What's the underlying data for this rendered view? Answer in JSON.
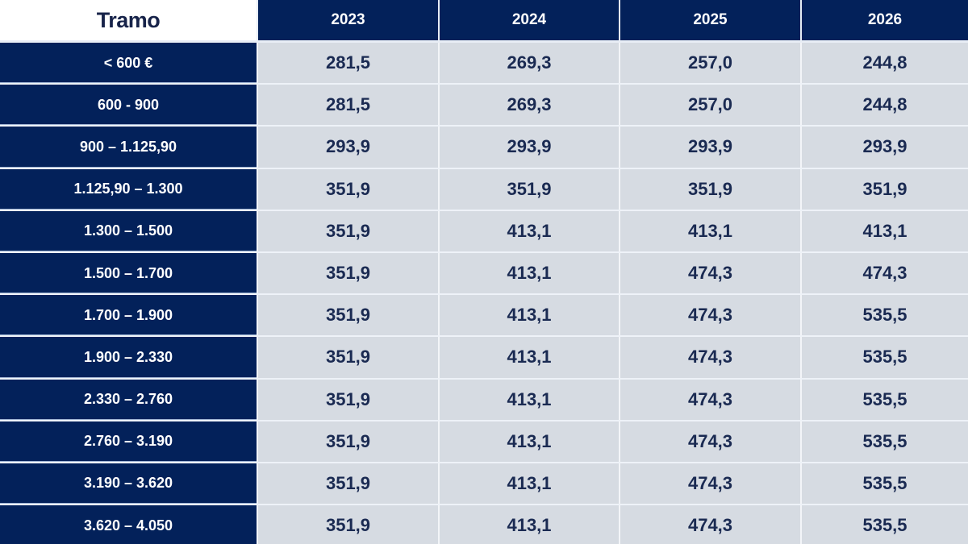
{
  "header": {
    "tramo_label": "Tramo",
    "years": [
      "2023",
      "2024",
      "2025",
      "2026"
    ]
  },
  "rows": [
    {
      "tramo": "< 600 €",
      "values": [
        "281,5",
        "269,3",
        "257,0",
        "244,8"
      ]
    },
    {
      "tramo": "600 - 900",
      "values": [
        "281,5",
        "269,3",
        "257,0",
        "244,8"
      ]
    },
    {
      "tramo": "900 – 1.125,90",
      "values": [
        "293,9",
        "293,9",
        "293,9",
        "293,9"
      ]
    },
    {
      "tramo": "1.125,90 – 1.300",
      "values": [
        "351,9",
        "351,9",
        "351,9",
        "351,9"
      ]
    },
    {
      "tramo": "1.300 – 1.500",
      "values": [
        "351,9",
        "413,1",
        "413,1",
        "413,1"
      ]
    },
    {
      "tramo": "1.500 – 1.700",
      "values": [
        "351,9",
        "413,1",
        "474,3",
        "474,3"
      ]
    },
    {
      "tramo": "1.700 – 1.900",
      "values": [
        "351,9",
        "413,1",
        "474,3",
        "535,5"
      ]
    },
    {
      "tramo": "1.900 – 2.330",
      "values": [
        "351,9",
        "413,1",
        "474,3",
        "535,5"
      ]
    },
    {
      "tramo": "2.330 – 2.760",
      "values": [
        "351,9",
        "413,1",
        "474,3",
        "535,5"
      ]
    },
    {
      "tramo": "2.760 – 3.190",
      "values": [
        "351,9",
        "413,1",
        "474,3",
        "535,5"
      ]
    },
    {
      "tramo": "3.190 – 3.620",
      "values": [
        "351,9",
        "413,1",
        "474,3",
        "535,5"
      ]
    },
    {
      "tramo": "3.620 – 4.050",
      "values": [
        "351,9",
        "413,1",
        "474,3",
        "535,5"
      ]
    }
  ],
  "colors": {
    "header_bg": "#03215a",
    "label_bg": "#03215a",
    "cell_bg": "#d6dbe2",
    "cell_text": "#1a2a52",
    "tramo_text": "#172349"
  }
}
